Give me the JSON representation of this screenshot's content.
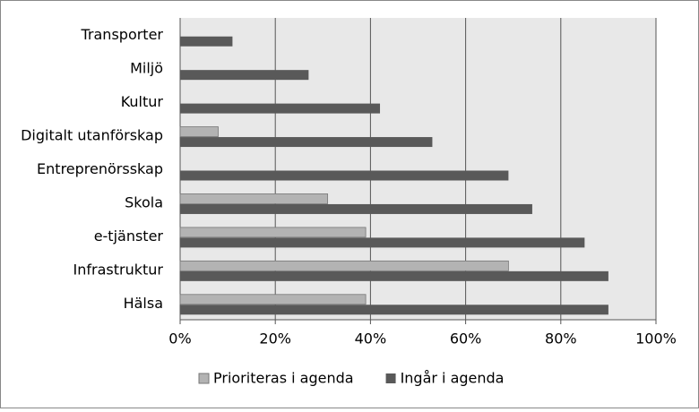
{
  "chart_data": {
    "type": "hbar",
    "categories": [
      "Transporter",
      "Miljö",
      "Kultur",
      "Digitalt utanförskap",
      "Entreprenörsskap",
      "Skola",
      "e-tjänster",
      "Infrastruktur",
      "Hälsa"
    ],
    "series": [
      {
        "name": "Prioriteras i agenda",
        "color": "#b3b3b3",
        "values": [
          0,
          0,
          0,
          8,
          0,
          31,
          39,
          69,
          39
        ]
      },
      {
        "name": "Ingår i agenda",
        "color": "#595959",
        "values": [
          11,
          27,
          42,
          53,
          69,
          74,
          85,
          90,
          90
        ]
      }
    ],
    "xlim": [
      0,
      100
    ],
    "xticks": [
      {
        "value": 0,
        "label": "0%"
      },
      {
        "value": 20,
        "label": "20%"
      },
      {
        "value": 40,
        "label": "40%"
      },
      {
        "value": 60,
        "label": "60%"
      },
      {
        "value": 80,
        "label": "80%"
      },
      {
        "value": 100,
        "label": "100%"
      }
    ],
    "grid": true,
    "legend": "bottom"
  }
}
